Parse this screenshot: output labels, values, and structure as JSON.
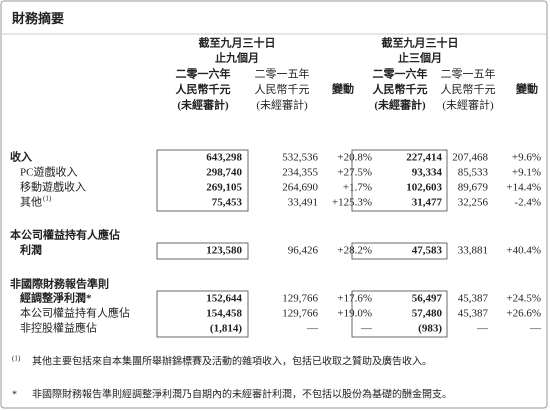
{
  "title": "財務摘要",
  "groups": [
    {
      "line1": "截至九月三十日",
      "line2": "止九個月",
      "columns": [
        {
          "year": "二零一六年",
          "currency": "人民幣千元",
          "audit": "(未經審計)"
        },
        {
          "year": "二零一五年",
          "currency": "人民幣千元",
          "audit": "(未經審計)"
        }
      ],
      "change": "變動"
    },
    {
      "line1": "截至九月三十日",
      "line2": "止三個月",
      "columns": [
        {
          "year": "二零一六年",
          "currency": "人民幣千元",
          "audit": "(未經審計)"
        },
        {
          "year": "二零一五年",
          "currency": "人民幣千元",
          "audit": "(未經審計)"
        }
      ],
      "change": "變動"
    }
  ],
  "table": {
    "rows": [
      {
        "label": "收入",
        "cells": [
          "643,298",
          "532,536",
          "+20.8%",
          "227,414",
          "207,468",
          "+9.6%"
        ]
      },
      {
        "label": "PC遊戲收入",
        "cells": [
          "298,740",
          "234,355",
          "+27.5%",
          "93,334",
          "85,533",
          "+9.1%"
        ]
      },
      {
        "label": "移動遊戲收入",
        "cells": [
          "269,105",
          "264,690",
          "+1.7%",
          "102,603",
          "89,679",
          "+14.4%"
        ]
      },
      {
        "label": "其他",
        "note": "(1)",
        "cells": [
          "75,453",
          "33,491",
          "+125.3%",
          "31,477",
          "32,256",
          "-2.4%"
        ]
      },
      {
        "label": "本公司權益持有人應佔"
      },
      {
        "label": "利潤",
        "cells": [
          "123,580",
          "96,426",
          "+28.2%",
          "47,583",
          "33,881",
          "+40.4%"
        ]
      },
      {
        "label": "非國際財務報告準則"
      },
      {
        "label": "經調整淨利潤*",
        "cells": [
          "152,644",
          "129,766",
          "+17.6%",
          "56,497",
          "45,387",
          "+24.5%"
        ]
      },
      {
        "label": "本公司權益持有人應佔",
        "cells": [
          "154,458",
          "129,766",
          "+19.0%",
          "57,480",
          "45,387",
          "+26.6%"
        ]
      },
      {
        "label": "非控股權益應佔",
        "cells": [
          "(1,814)",
          "—",
          "—",
          "(983)",
          "—",
          "—"
        ]
      }
    ]
  },
  "footnotes": [
    {
      "marker": "(1)",
      "text": "其他主要包括來自本集團所舉辦錦標賽及活動的雜項收入，包括已收取之贊助及廣告收入。"
    },
    {
      "marker": "*",
      "text": "非國際財務報告準則經調整淨利潤乃自期內的未經審計利潤，不包括以股份為基礎的酬金開支。"
    }
  ]
}
